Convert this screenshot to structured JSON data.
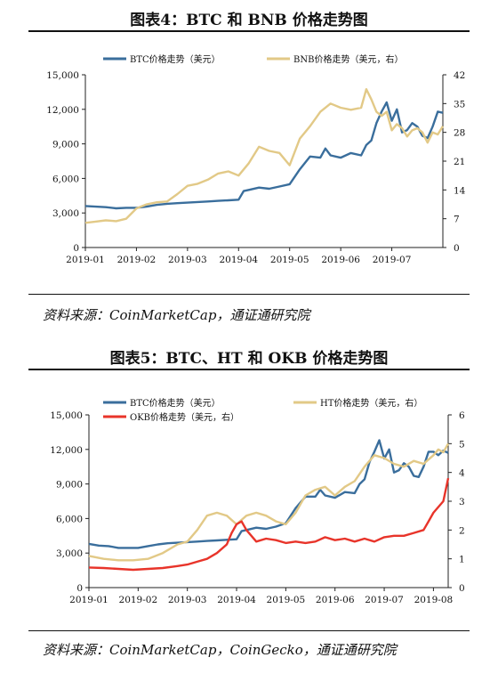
{
  "figure1": {
    "title": "图表4：BTC 和 BNB 价格走势图",
    "source": "资料来源：CoinMarketCap，通证通研究院"
  },
  "figure2": {
    "title": "图表5：BTC、HT 和 OKB 价格走势图",
    "source": "资料来源：CoinMarketCap，CoinGecko，通证通研究院"
  },
  "colors": {
    "btc": "#3a6e9c",
    "bnb": "#e2c987",
    "ht": "#e2c987",
    "okb": "#e8342a"
  },
  "chart_data": [
    {
      "type": "line",
      "x_ticks": [
        "2019-01",
        "2019-02",
        "2019-03",
        "2019-04",
        "2019-05",
        "2019-06",
        "2019-07"
      ],
      "x_range": [
        0,
        7.0
      ],
      "y_left": {
        "ticks": [
          "0",
          "3,000",
          "6,000",
          "9,000",
          "12,000",
          "15,000"
        ],
        "range": [
          0,
          15000
        ]
      },
      "y_right": {
        "ticks": [
          "0",
          "7",
          "14",
          "21",
          "28",
          "35",
          "42"
        ],
        "range": [
          0,
          42
        ]
      },
      "legend_position": "top",
      "series": [
        {
          "name": "BTC价格走势（美元）",
          "axis": "left",
          "color": "#3a6e9c",
          "x": [
            0,
            0.2,
            0.4,
            0.6,
            0.8,
            1.0,
            1.2,
            1.4,
            1.6,
            1.8,
            2.0,
            2.2,
            2.4,
            2.6,
            2.8,
            3.0,
            3.1,
            3.2,
            3.4,
            3.6,
            3.8,
            4.0,
            4.2,
            4.4,
            4.6,
            4.7,
            4.8,
            5.0,
            5.2,
            5.4,
            5.5,
            5.6,
            5.7,
            5.8,
            5.9,
            6.0,
            6.1,
            6.2,
            6.3,
            6.4,
            6.5,
            6.6,
            6.7,
            6.8,
            6.9,
            7.0
          ],
          "y": [
            3600,
            3550,
            3500,
            3400,
            3450,
            3450,
            3550,
            3700,
            3800,
            3850,
            3900,
            3950,
            4000,
            4050,
            4100,
            4150,
            4900,
            5000,
            5200,
            5100,
            5300,
            5500,
            6800,
            7900,
            7800,
            8600,
            8000,
            7800,
            8200,
            8000,
            8900,
            9300,
            10800,
            11800,
            12600,
            11000,
            12000,
            10000,
            10200,
            10800,
            10500,
            9700,
            9500,
            10500,
            11800,
            11700
          ]
        },
        {
          "name": "BNB价格走势（美元，右）",
          "axis": "right",
          "color": "#e2c987",
          "x": [
            0,
            0.2,
            0.4,
            0.6,
            0.8,
            1.0,
            1.2,
            1.4,
            1.6,
            1.8,
            2.0,
            2.2,
            2.4,
            2.6,
            2.8,
            3.0,
            3.2,
            3.4,
            3.6,
            3.8,
            4.0,
            4.2,
            4.4,
            4.6,
            4.8,
            5.0,
            5.2,
            5.4,
            5.5,
            5.6,
            5.7,
            5.8,
            5.9,
            6.0,
            6.1,
            6.2,
            6.3,
            6.4,
            6.5,
            6.6,
            6.7,
            6.8,
            6.9,
            7.0
          ],
          "y": [
            6,
            6.3,
            6.6,
            6.4,
            7,
            9.5,
            10.5,
            11,
            11.2,
            13,
            15,
            15.5,
            16.5,
            18,
            18.5,
            17.5,
            20.5,
            24.5,
            23.5,
            23,
            20,
            26.5,
            29.5,
            33,
            35,
            34,
            33.5,
            34,
            38.5,
            36,
            33,
            32,
            33,
            28.5,
            30,
            29,
            27,
            28.5,
            29,
            28,
            25.5,
            28,
            27.5,
            29.5
          ]
        }
      ]
    },
    {
      "type": "line",
      "x_ticks": [
        "2019-01",
        "2019-02",
        "2019-03",
        "2019-04",
        "2019-05",
        "2019-06",
        "2019-07",
        "2019-08"
      ],
      "x_range": [
        0,
        7.3
      ],
      "y_left": {
        "ticks": [
          "0",
          "3,000",
          "6,000",
          "9,000",
          "12,000",
          "15,000"
        ],
        "range": [
          0,
          15000
        ]
      },
      "y_right": {
        "ticks": [
          "0",
          "1",
          "2",
          "3",
          "4",
          "5",
          "6"
        ],
        "range": [
          0,
          6
        ]
      },
      "legend_position": "top",
      "series": [
        {
          "name": "BTC价格走势（美元）",
          "axis": "left",
          "color": "#3a6e9c",
          "x": [
            0,
            0.2,
            0.4,
            0.6,
            0.8,
            1.0,
            1.2,
            1.4,
            1.6,
            1.8,
            2.0,
            2.2,
            2.4,
            2.6,
            2.8,
            3.0,
            3.1,
            3.2,
            3.4,
            3.6,
            3.8,
            4.0,
            4.2,
            4.4,
            4.6,
            4.7,
            4.8,
            5.0,
            5.2,
            5.4,
            5.5,
            5.6,
            5.7,
            5.8,
            5.9,
            6.0,
            6.1,
            6.2,
            6.3,
            6.4,
            6.5,
            6.6,
            6.7,
            6.8,
            6.9,
            7.0,
            7.1,
            7.2,
            7.3
          ],
          "y": [
            3800,
            3650,
            3600,
            3450,
            3450,
            3450,
            3600,
            3750,
            3850,
            3900,
            3950,
            4000,
            4050,
            4100,
            4150,
            4200,
            4900,
            5000,
            5200,
            5100,
            5300,
            5600,
            6900,
            7900,
            7900,
            8500,
            8000,
            7800,
            8300,
            8200,
            9000,
            9400,
            10900,
            11800,
            12800,
            11200,
            12000,
            10000,
            10200,
            10800,
            10500,
            9700,
            9600,
            10500,
            11800,
            11800,
            11500,
            11900,
            11700
          ]
        },
        {
          "name": "HT价格走势（美元，右）",
          "axis": "right",
          "color": "#e2c987",
          "x": [
            0,
            0.3,
            0.6,
            0.9,
            1.2,
            1.5,
            1.8,
            2.0,
            2.2,
            2.4,
            2.6,
            2.8,
            3.0,
            3.2,
            3.4,
            3.6,
            3.8,
            4.0,
            4.2,
            4.4,
            4.6,
            4.8,
            5.0,
            5.2,
            5.4,
            5.6,
            5.8,
            6.0,
            6.2,
            6.4,
            6.6,
            6.8,
            7.0,
            7.1,
            7.2,
            7.3
          ],
          "y": [
            1.1,
            1.0,
            0.95,
            0.95,
            1.0,
            1.2,
            1.5,
            1.6,
            2.0,
            2.5,
            2.6,
            2.5,
            2.2,
            2.5,
            2.6,
            2.5,
            2.3,
            2.2,
            2.6,
            3.2,
            3.4,
            3.5,
            3.2,
            3.5,
            3.7,
            4.2,
            4.6,
            4.5,
            4.3,
            4.2,
            4.4,
            4.3,
            4.6,
            4.8,
            4.7,
            5.0
          ]
        },
        {
          "name": "OKB价格走势（美元，右）",
          "axis": "right",
          "color": "#e8342a",
          "x": [
            0,
            0.3,
            0.6,
            0.9,
            1.2,
            1.5,
            1.8,
            2.0,
            2.2,
            2.4,
            2.6,
            2.8,
            2.9,
            3.0,
            3.1,
            3.2,
            3.4,
            3.6,
            3.8,
            4.0,
            4.2,
            4.4,
            4.6,
            4.8,
            5.0,
            5.2,
            5.4,
            5.6,
            5.8,
            6.0,
            6.2,
            6.4,
            6.6,
            6.8,
            6.9,
            7.0,
            7.1,
            7.2,
            7.3
          ],
          "y": [
            0.7,
            0.68,
            0.65,
            0.62,
            0.65,
            0.68,
            0.75,
            0.8,
            0.9,
            1.0,
            1.2,
            1.5,
            1.9,
            2.2,
            2.3,
            2.0,
            1.6,
            1.7,
            1.65,
            1.55,
            1.6,
            1.55,
            1.6,
            1.75,
            1.65,
            1.7,
            1.6,
            1.7,
            1.6,
            1.75,
            1.8,
            1.8,
            1.9,
            2.0,
            2.3,
            2.6,
            2.8,
            3.0,
            3.8
          ]
        }
      ]
    }
  ]
}
